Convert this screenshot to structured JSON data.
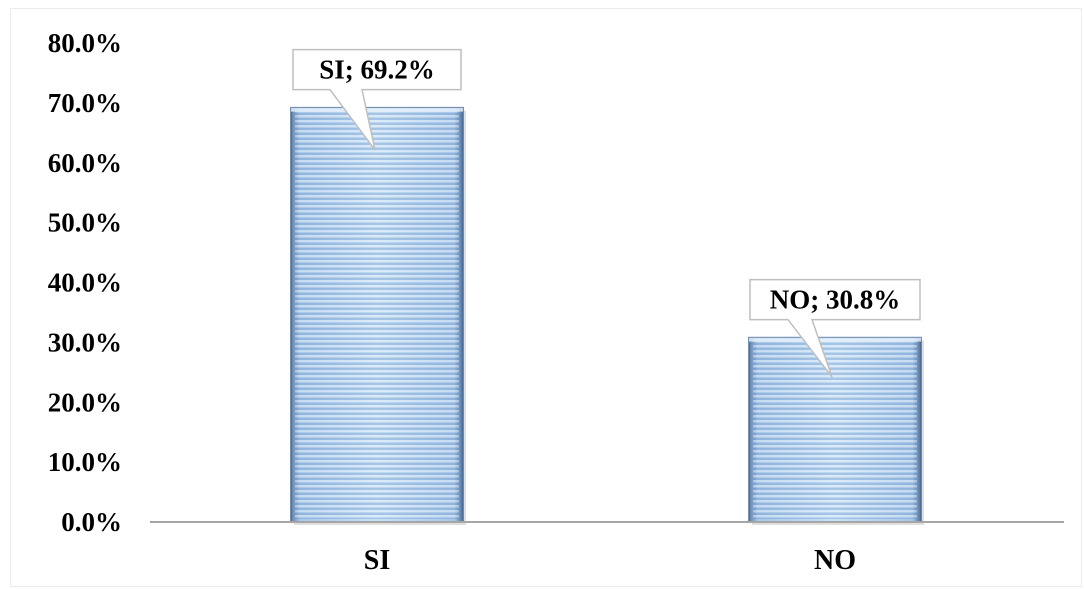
{
  "chart_data": {
    "type": "bar",
    "categories": [
      "SI",
      "NO"
    ],
    "values": [
      69.2,
      30.8
    ],
    "value_unit": "%",
    "data_labels": [
      "SI; 69.2%",
      "NO; 30.8%"
    ],
    "y_tick_labels": [
      "0.0%",
      "10.0%",
      "20.0%",
      "30.0%",
      "40.0%",
      "50.0%",
      "60.0%",
      "70.0%",
      "80.0%"
    ],
    "ylim": [
      0,
      80
    ],
    "title": "",
    "xlabel": "",
    "ylabel": "",
    "grid": false,
    "legend": "none",
    "colors": {
      "bar_fill": "#b8d6f2",
      "bar_stripe": "#7fa9d8",
      "bar_edge": "#4a6c95",
      "axis": "#a6a6a6",
      "callout_border": "#bfbfbf"
    }
  }
}
